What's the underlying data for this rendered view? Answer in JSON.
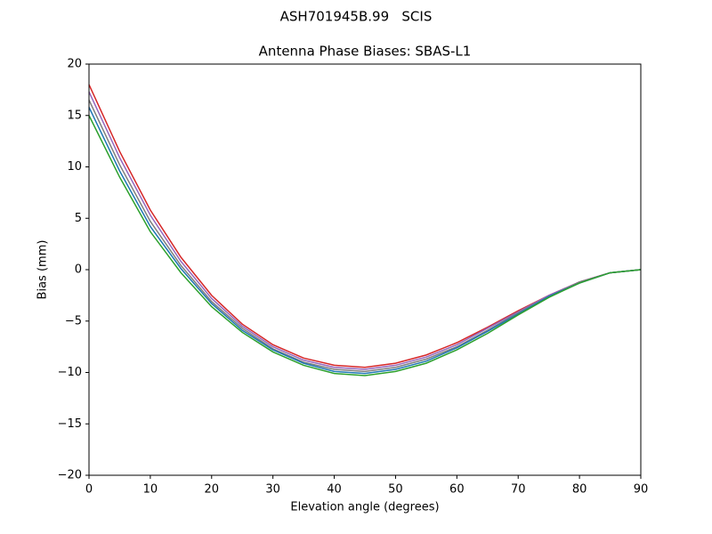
{
  "chart_data": {
    "type": "line",
    "suptitle": "ASH701945B.99   SCIS",
    "title": "Antenna Phase Biases: SBAS-L1",
    "xlabel": "Elevation angle (degrees)",
    "ylabel": "Bias (mm)",
    "x": [
      0,
      5,
      10,
      15,
      20,
      25,
      30,
      35,
      40,
      45,
      50,
      55,
      60,
      65,
      70,
      75,
      80,
      85,
      90
    ],
    "series": [
      {
        "color": "#d62728",
        "values": [
          18,
          11.5,
          5.8,
          1.2,
          -2.5,
          -5.3,
          -7.3,
          -8.6,
          -9.3,
          -9.5,
          -9.1,
          -8.3,
          -7.1,
          -5.6,
          -4.0,
          -2.5,
          -1.2,
          -0.3,
          0
        ]
      },
      {
        "color": "#9467bd",
        "values": [
          17.3,
          10.9,
          5.3,
          0.8,
          -2.8,
          -5.5,
          -7.5,
          -8.8,
          -9.5,
          -9.7,
          -9.3,
          -8.5,
          -7.3,
          -5.7,
          -4.1,
          -2.5,
          -1.2,
          -0.3,
          0
        ]
      },
      {
        "color": "#7f7f7f",
        "values": [
          16.5,
          10.2,
          4.7,
          0.4,
          -3.1,
          -5.7,
          -7.7,
          -9,
          -9.7,
          -9.9,
          -9.5,
          -8.7,
          -7.5,
          -5.9,
          -4.2,
          -2.6,
          -1.2,
          -0.3,
          0
        ]
      },
      {
        "color": "#1f77b4",
        "values": [
          15.8,
          9.6,
          4.2,
          0.1,
          -3.3,
          -5.9,
          -7.8,
          -9.1,
          -9.9,
          -10.1,
          -9.7,
          -8.9,
          -7.6,
          -6.0,
          -4.3,
          -2.6,
          -1.3,
          -0.3,
          0
        ]
      },
      {
        "color": "#2ca02c",
        "values": [
          15,
          9,
          3.7,
          -0.3,
          -3.6,
          -6.1,
          -8,
          -9.3,
          -10.1,
          -10.3,
          -9.9,
          -9.1,
          -7.8,
          -6.2,
          -4.4,
          -2.7,
          -1.3,
          -0.3,
          0
        ]
      }
    ],
    "xlim": [
      0,
      90
    ],
    "xticks": [
      0,
      10,
      20,
      30,
      40,
      50,
      60,
      70,
      80,
      90
    ],
    "ylim": [
      -20,
      20
    ],
    "yticks": [
      {
        "value": -20,
        "label": "−20"
      },
      {
        "value": -15,
        "label": "−15"
      },
      {
        "value": -10,
        "label": "−10"
      },
      {
        "value": -5,
        "label": "−5"
      },
      0,
      5,
      10,
      15,
      20
    ],
    "grid": false
  }
}
